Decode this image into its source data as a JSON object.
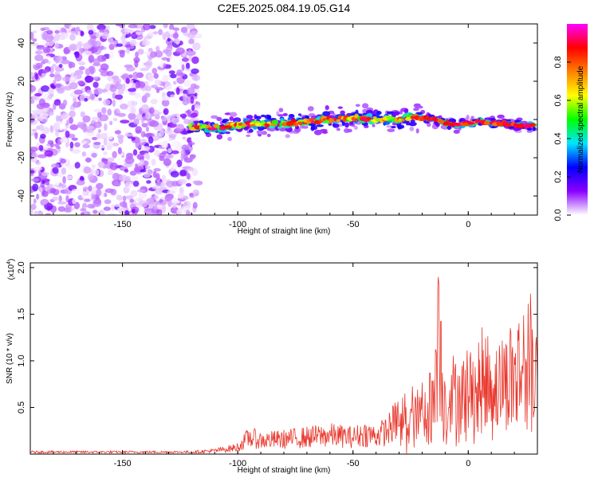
{
  "figure": {
    "title": "C2E5.2025.084.19.05.G14"
  },
  "chart_data": [
    {
      "type": "heatmap",
      "title": "C2E5.2025.084.19.05.G14",
      "xlabel": "Height of straight line (km)",
      "ylabel": "Frequency (Hz)",
      "xlim": [
        -190,
        30
      ],
      "ylim": [
        -50,
        50
      ],
      "xticks": [
        -150,
        -100,
        -50,
        0
      ],
      "yticks": [
        -40,
        -20,
        0,
        20,
        40
      ],
      "colorbar": {
        "label": "Normalized spectral amplitude",
        "range": [
          0,
          1
        ],
        "ticks": [
          0.0,
          0.2,
          0.4,
          0.6,
          0.8
        ],
        "tick_labels": [
          "0.0",
          "0.2",
          "0.4",
          "0.6",
          "0.8"
        ],
        "colors": [
          "#ffffff",
          "#8a00ff",
          "#0000ff",
          "#00e5ff",
          "#00ff00",
          "#ffff00",
          "#ff8000",
          "#ff0000",
          "#ff00ff"
        ]
      },
      "ridge": [
        {
          "x": -120,
          "y": -4
        },
        {
          "x": -110,
          "y": -4
        },
        {
          "x": -100,
          "y": -3
        },
        {
          "x": -90,
          "y": -2
        },
        {
          "x": -80,
          "y": -2
        },
        {
          "x": -70,
          "y": -1
        },
        {
          "x": -60,
          "y": 0
        },
        {
          "x": -50,
          "y": 1
        },
        {
          "x": -40,
          "y": 0
        },
        {
          "x": -30,
          "y": 0
        },
        {
          "x": -25,
          "y": 1
        },
        {
          "x": -20,
          "y": 1
        },
        {
          "x": -15,
          "y": 0
        },
        {
          "x": -10,
          "y": -2
        },
        {
          "x": -5,
          "y": -3
        },
        {
          "x": 0,
          "y": -2
        },
        {
          "x": 5,
          "y": -1
        },
        {
          "x": 10,
          "y": -2
        },
        {
          "x": 15,
          "y": -2
        },
        {
          "x": 20,
          "y": -3
        },
        {
          "x": 28,
          "y": -3
        }
      ],
      "noise_region_x": [
        -190,
        -120
      ]
    },
    {
      "type": "line",
      "xlabel": "Height of straight line (km)",
      "ylabel": "SNR (10 * v/v)",
      "y_scale_label": "(x10",
      "y_scale_exponent": "4",
      "xlim": [
        -190,
        30
      ],
      "ylim": [
        0,
        2.05
      ],
      "xticks": [
        -150,
        -100,
        -50,
        0
      ],
      "yticks": [
        0.5,
        1.0,
        1.5,
        2.0
      ],
      "ytick_labels": [
        "0.5",
        "1.0",
        "1.5",
        "2.0"
      ],
      "line_color": "#e8352a",
      "series": [
        {
          "x": [
            -190,
            -170,
            -150,
            -130,
            -120,
            -110,
            -100,
            -95,
            -90,
            -80,
            -70,
            -60,
            -50,
            -45,
            -40,
            -35,
            -30,
            -25,
            -20,
            -15,
            -13,
            -10,
            -5,
            0,
            5,
            10,
            15,
            20,
            25,
            30
          ],
          "y": [
            0.02,
            0.02,
            0.02,
            0.02,
            0.03,
            0.05,
            0.1,
            0.25,
            0.2,
            0.22,
            0.25,
            0.28,
            0.25,
            0.3,
            0.27,
            0.35,
            0.55,
            0.65,
            0.75,
            1.0,
            1.9,
            0.9,
            1.05,
            1.1,
            1.15,
            1.2,
            1.25,
            1.35,
            1.45,
            1.55
          ]
        }
      ]
    }
  ]
}
